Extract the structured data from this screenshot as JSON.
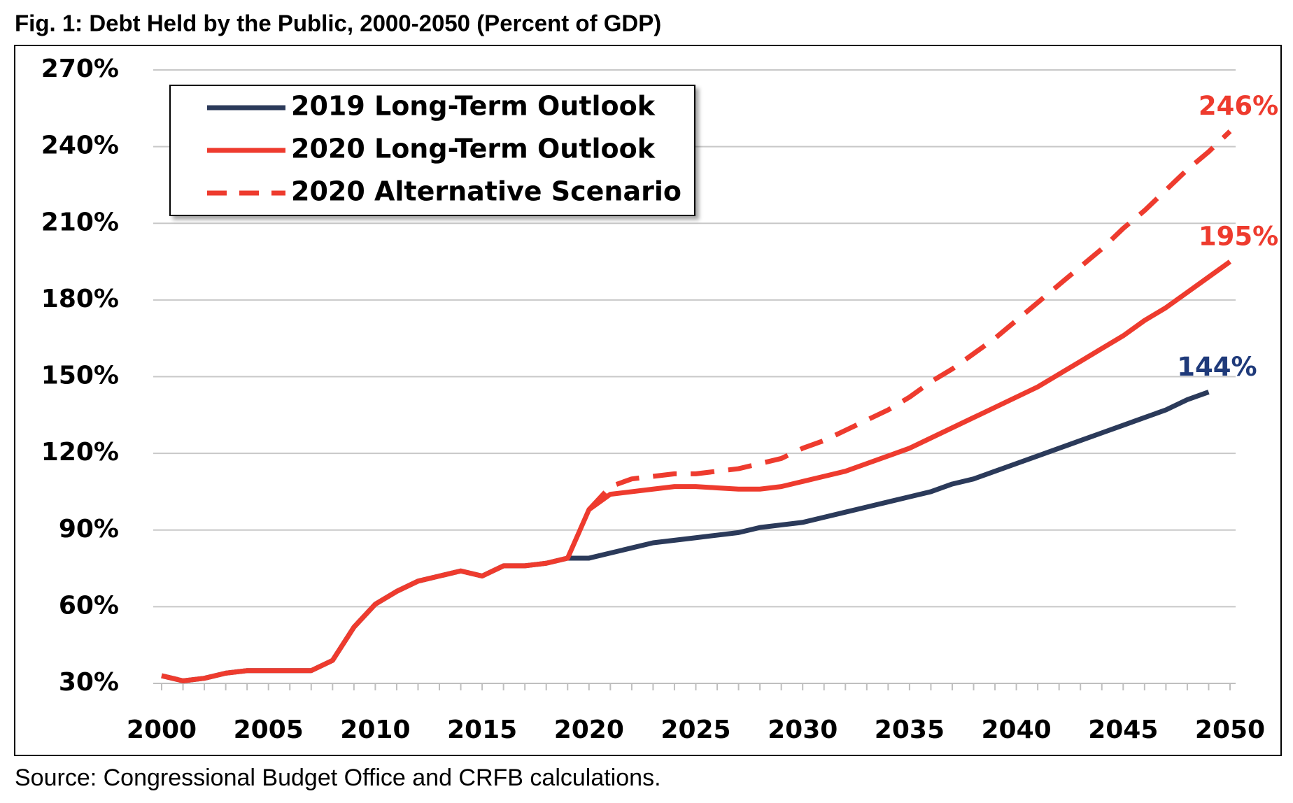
{
  "chart_data": {
    "type": "line",
    "title": "Fig. 1: Debt Held by the Public, 2000-2050 (Percent of GDP)",
    "source": "Source: Congressional Budget Office and CRFB calculations.",
    "x": [
      2000,
      2001,
      2002,
      2003,
      2004,
      2005,
      2006,
      2007,
      2008,
      2009,
      2010,
      2011,
      2012,
      2013,
      2014,
      2015,
      2016,
      2017,
      2018,
      2019,
      2020,
      2021,
      2022,
      2023,
      2024,
      2025,
      2026,
      2027,
      2028,
      2029,
      2030,
      2031,
      2032,
      2033,
      2034,
      2035,
      2036,
      2037,
      2038,
      2039,
      2040,
      2041,
      2042,
      2043,
      2044,
      2045,
      2046,
      2047,
      2048,
      2049,
      2050
    ],
    "xlim": [
      2000,
      2050
    ],
    "xticks": [
      2000,
      2005,
      2010,
      2015,
      2020,
      2025,
      2030,
      2035,
      2040,
      2045,
      2050
    ],
    "ylim": [
      30,
      270
    ],
    "yticks": [
      {
        "value": 30,
        "label": "30%"
      },
      {
        "value": 60,
        "label": "60%"
      },
      {
        "value": 90,
        "label": "90%"
      },
      {
        "value": 120,
        "label": "120%"
      },
      {
        "value": 150,
        "label": "150%"
      },
      {
        "value": 180,
        "label": "180%"
      },
      {
        "value": 210,
        "label": "210%"
      },
      {
        "value": 240,
        "label": "240%"
      },
      {
        "value": 270,
        "label": "270%"
      }
    ],
    "grid": true,
    "legend": "upper left",
    "series": [
      {
        "name": "2019 Long-Term Outlook",
        "color": "#2b3a5a",
        "dash": false,
        "values": [
          33,
          31,
          32,
          34,
          35,
          35,
          35,
          35,
          39,
          52,
          61,
          66,
          70,
          72,
          74,
          72,
          76,
          76,
          77,
          79,
          79,
          81,
          83,
          85,
          86,
          87,
          88,
          89,
          91,
          92,
          93,
          95,
          97,
          99,
          101,
          103,
          105,
          108,
          110,
          113,
          116,
          119,
          122,
          125,
          128,
          131,
          134,
          137,
          141,
          144,
          null
        ],
        "value_labels": [
          null,
          null,
          null,
          null,
          null,
          null,
          null,
          null,
          null,
          null,
          null,
          null,
          null,
          null,
          null,
          null,
          null,
          null,
          null,
          null,
          null,
          null,
          null,
          null,
          null,
          null,
          null,
          null,
          null,
          null,
          null,
          null,
          null,
          null,
          null,
          null,
          null,
          null,
          null,
          null,
          null,
          null,
          null,
          null,
          null,
          null,
          null,
          null,
          null,
          "144%",
          null
        ],
        "label_color": "#1f3a7a"
      },
      {
        "name": "2020 Long-Term Outlook",
        "color": "#ee3b2e",
        "dash": false,
        "values": [
          33,
          31,
          32,
          34,
          35,
          35,
          35,
          35,
          39,
          52,
          61,
          66,
          70,
          72,
          74,
          72,
          76,
          76,
          77,
          79,
          98,
          104,
          105,
          106,
          107,
          107,
          106.5,
          106,
          106,
          107,
          109,
          111,
          113,
          116,
          119,
          122,
          126,
          130,
          134,
          138,
          142,
          146,
          151,
          156,
          161,
          166,
          172,
          177,
          183,
          189,
          195
        ],
        "value_labels": [
          null,
          null,
          null,
          null,
          null,
          null,
          null,
          null,
          null,
          null,
          null,
          null,
          null,
          null,
          null,
          null,
          null,
          null,
          null,
          null,
          null,
          null,
          null,
          null,
          null,
          null,
          null,
          null,
          null,
          null,
          null,
          null,
          null,
          null,
          null,
          null,
          null,
          null,
          null,
          null,
          null,
          null,
          null,
          null,
          null,
          null,
          null,
          null,
          null,
          null,
          "195%"
        ],
        "label_color": "#ee3b2e"
      },
      {
        "name": "2020 Alternative Scenario",
        "color": "#ee3b2e",
        "dash": true,
        "values": [
          null,
          null,
          null,
          null,
          null,
          null,
          null,
          null,
          null,
          null,
          null,
          null,
          null,
          null,
          null,
          null,
          null,
          null,
          null,
          null,
          98,
          107,
          110,
          111,
          112,
          112,
          113,
          114,
          116,
          118,
          122,
          125,
          129,
          133,
          137,
          142,
          148,
          153,
          159,
          165,
          172,
          179,
          186,
          193,
          200,
          208,
          215,
          223,
          231,
          238,
          246
        ],
        "value_labels": [
          null,
          null,
          null,
          null,
          null,
          null,
          null,
          null,
          null,
          null,
          null,
          null,
          null,
          null,
          null,
          null,
          null,
          null,
          null,
          null,
          null,
          null,
          null,
          null,
          null,
          null,
          null,
          null,
          null,
          null,
          null,
          null,
          null,
          null,
          null,
          null,
          null,
          null,
          null,
          null,
          null,
          null,
          null,
          null,
          null,
          null,
          null,
          null,
          null,
          null,
          "246%"
        ],
        "label_color": "#ee3b2e"
      }
    ]
  }
}
